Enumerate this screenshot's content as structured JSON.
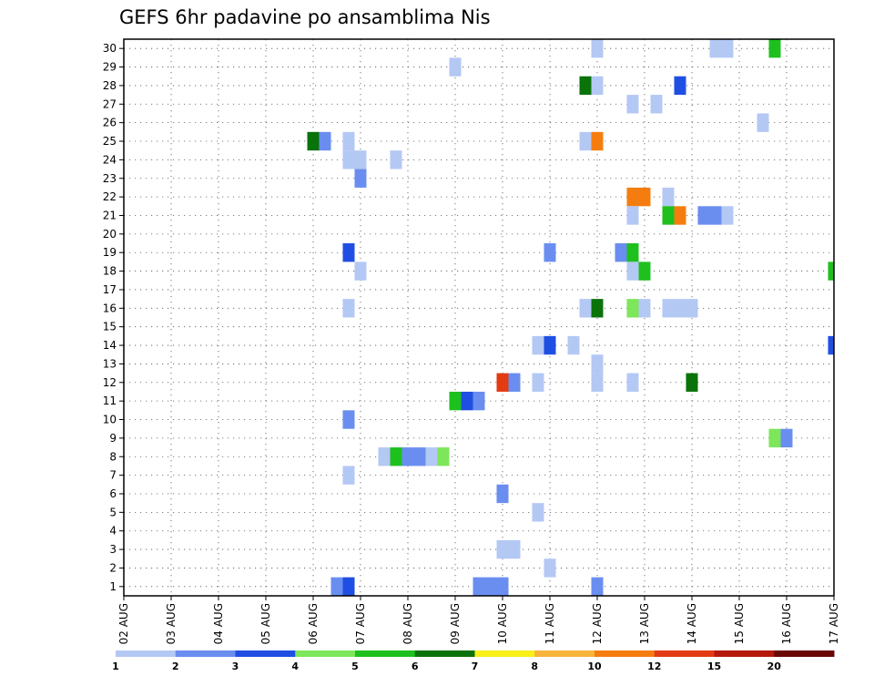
{
  "chart_data": {
    "type": "heatmap",
    "title": "GEFS 6hr padavine po ansamblima Nis",
    "xlabel": "",
    "ylabel": "",
    "x_ticks": [
      "02 AUG",
      "03 AUG",
      "04 AUG",
      "05 AUG",
      "06 AUG",
      "07 AUG",
      "08 AUG",
      "09 AUG",
      "10 AUG",
      "11 AUG",
      "12 AUG",
      "13 AUG",
      "14 AUG",
      "15 AUG",
      "16 AUG",
      "17 AUG"
    ],
    "xlim": [
      0,
      60
    ],
    "y_ticks": [
      1,
      2,
      3,
      4,
      5,
      6,
      7,
      8,
      9,
      10,
      11,
      12,
      13,
      14,
      15,
      16,
      17,
      18,
      19,
      20,
      21,
      22,
      23,
      24,
      25,
      26,
      27,
      28,
      29,
      30
    ],
    "ylim": [
      0.5,
      30.5
    ],
    "x_unit": "6-hour step from 02 AUG 00Z",
    "grid": true,
    "legend": {
      "placement": "bottom",
      "labels": [
        "1",
        "2",
        "3",
        "4",
        "5",
        "6",
        "7",
        "8",
        "10",
        "12",
        "15",
        "20"
      ],
      "colors": [
        "#b4c8f4",
        "#6a8ef0",
        "#1f4fe2",
        "#7de65a",
        "#1ec01e",
        "#0a730a",
        "#f7f01a",
        "#f8b33a",
        "#f57d0f",
        "#e33b12",
        "#b5190c",
        "#6a0707"
      ]
    },
    "cells": [
      {
        "x": 40,
        "y": 30,
        "level": 1
      },
      {
        "x": 50,
        "y": 30,
        "level": 1
      },
      {
        "x": 51,
        "y": 30,
        "level": 1
      },
      {
        "x": 55,
        "y": 30,
        "level": 5
      },
      {
        "x": 28,
        "y": 29,
        "level": 1
      },
      {
        "x": 39,
        "y": 28,
        "level": 6
      },
      {
        "x": 40,
        "y": 28,
        "level": 1
      },
      {
        "x": 47,
        "y": 28,
        "level": 3
      },
      {
        "x": 43,
        "y": 27,
        "level": 1
      },
      {
        "x": 45,
        "y": 27,
        "level": 1
      },
      {
        "x": 54,
        "y": 26,
        "level": 1
      },
      {
        "x": 16,
        "y": 25,
        "level": 6
      },
      {
        "x": 17,
        "y": 25,
        "level": 2
      },
      {
        "x": 19,
        "y": 25,
        "level": 1
      },
      {
        "x": 39,
        "y": 25,
        "level": 1
      },
      {
        "x": 40,
        "y": 25,
        "level": 9
      },
      {
        "x": 19,
        "y": 24,
        "level": 1
      },
      {
        "x": 20,
        "y": 24,
        "level": 1
      },
      {
        "x": 23,
        "y": 24,
        "level": 1
      },
      {
        "x": 20,
        "y": 23,
        "level": 2
      },
      {
        "x": 43,
        "y": 22,
        "level": 9
      },
      {
        "x": 44,
        "y": 22,
        "level": 9
      },
      {
        "x": 46,
        "y": 22,
        "level": 1
      },
      {
        "x": 43,
        "y": 21,
        "level": 1
      },
      {
        "x": 46,
        "y": 21,
        "level": 5
      },
      {
        "x": 47,
        "y": 21,
        "level": 9
      },
      {
        "x": 49,
        "y": 21,
        "level": 2
      },
      {
        "x": 50,
        "y": 21,
        "level": 2
      },
      {
        "x": 51,
        "y": 21,
        "level": 1
      },
      {
        "x": 19,
        "y": 19,
        "level": 3
      },
      {
        "x": 36,
        "y": 19,
        "level": 2
      },
      {
        "x": 42,
        "y": 19,
        "level": 2
      },
      {
        "x": 43,
        "y": 19,
        "level": 5
      },
      {
        "x": 20,
        "y": 18,
        "level": 1
      },
      {
        "x": 43,
        "y": 18,
        "level": 1
      },
      {
        "x": 44,
        "y": 18,
        "level": 5
      },
      {
        "x": 60,
        "y": 18,
        "level": 5
      },
      {
        "x": 19,
        "y": 16,
        "level": 1
      },
      {
        "x": 39,
        "y": 16,
        "level": 1
      },
      {
        "x": 40,
        "y": 16,
        "level": 6
      },
      {
        "x": 43,
        "y": 16,
        "level": 4
      },
      {
        "x": 44,
        "y": 16,
        "level": 1
      },
      {
        "x": 46,
        "y": 16,
        "level": 1
      },
      {
        "x": 47,
        "y": 16,
        "level": 1
      },
      {
        "x": 48,
        "y": 16,
        "level": 1
      },
      {
        "x": 35,
        "y": 14,
        "level": 1
      },
      {
        "x": 36,
        "y": 14,
        "level": 3
      },
      {
        "x": 38,
        "y": 14,
        "level": 1
      },
      {
        "x": 60,
        "y": 14,
        "level": 3
      },
      {
        "x": 40,
        "y": 13,
        "level": 1
      },
      {
        "x": 32,
        "y": 12,
        "level": 10
      },
      {
        "x": 33,
        "y": 12,
        "level": 2
      },
      {
        "x": 35,
        "y": 12,
        "level": 1
      },
      {
        "x": 40,
        "y": 12,
        "level": 1
      },
      {
        "x": 43,
        "y": 12,
        "level": 1
      },
      {
        "x": 48,
        "y": 12,
        "level": 6
      },
      {
        "x": 28,
        "y": 11,
        "level": 5
      },
      {
        "x": 29,
        "y": 11,
        "level": 3
      },
      {
        "x": 30,
        "y": 11,
        "level": 2
      },
      {
        "x": 19,
        "y": 10,
        "level": 2
      },
      {
        "x": 55,
        "y": 9,
        "level": 4
      },
      {
        "x": 56,
        "y": 9,
        "level": 2
      },
      {
        "x": 22,
        "y": 8,
        "level": 1
      },
      {
        "x": 23,
        "y": 8,
        "level": 5
      },
      {
        "x": 24,
        "y": 8,
        "level": 2
      },
      {
        "x": 25,
        "y": 8,
        "level": 2
      },
      {
        "x": 26,
        "y": 8,
        "level": 1
      },
      {
        "x": 27,
        "y": 8,
        "level": 4
      },
      {
        "x": 19,
        "y": 7,
        "level": 1
      },
      {
        "x": 32,
        "y": 6,
        "level": 2
      },
      {
        "x": 35,
        "y": 5,
        "level": 1
      },
      {
        "x": 32,
        "y": 3,
        "level": 1
      },
      {
        "x": 33,
        "y": 3,
        "level": 1
      },
      {
        "x": 36,
        "y": 2,
        "level": 1
      },
      {
        "x": 18,
        "y": 1,
        "level": 2
      },
      {
        "x": 19,
        "y": 1,
        "level": 3
      },
      {
        "x": 30,
        "y": 1,
        "level": 2
      },
      {
        "x": 31,
        "y": 1,
        "level": 2
      },
      {
        "x": 32,
        "y": 1,
        "level": 2
      },
      {
        "x": 40,
        "y": 1,
        "level": 2
      }
    ]
  }
}
